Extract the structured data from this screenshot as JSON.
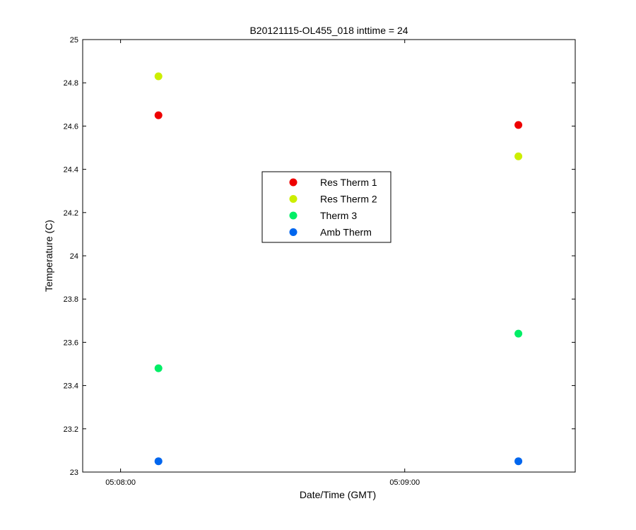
{
  "chart_data": {
    "type": "scatter",
    "title": "B20121115-OL455_018 inttime = 24",
    "xlabel": "Date/Time (GMT)",
    "ylabel": "Temperature (C)",
    "ylim": [
      23,
      25
    ],
    "yticks": [
      23,
      23.2,
      23.4,
      23.6,
      23.8,
      24,
      24.2,
      24.4,
      24.6,
      24.8,
      25
    ],
    "ytick_labels": [
      "23",
      "23.2",
      "23.4",
      "23.6",
      "23.8",
      "24",
      "24.2",
      "24.4",
      "24.6",
      "24.8",
      "25"
    ],
    "xlim": [
      "05:07:52",
      "05:09:36"
    ],
    "xticks": [
      "05:08:00",
      "05:09:00"
    ],
    "x": [
      "05:08:08",
      "05:09:24"
    ],
    "legend_position": "center",
    "grid": false,
    "series": [
      {
        "name": "Res Therm 1",
        "color": "#ee0000",
        "values": [
          24.65,
          24.605
        ]
      },
      {
        "name": "Res Therm 2",
        "color": "#ccee00",
        "values": [
          24.83,
          24.46
        ]
      },
      {
        "name": "Therm 3",
        "color": "#00ee66",
        "values": [
          23.48,
          23.64
        ]
      },
      {
        "name": "Amb Therm",
        "color": "#0066ee",
        "values": [
          23.05,
          23.05
        ]
      }
    ]
  }
}
